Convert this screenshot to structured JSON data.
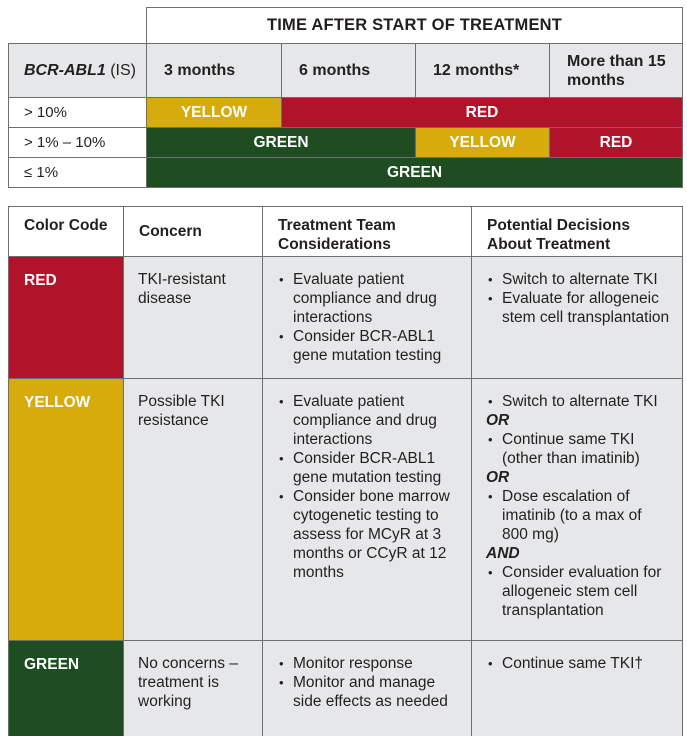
{
  "milestones": {
    "time_header": "TIME AFTER START OF TREATMENT",
    "row_header": "BCR-ABL1",
    "row_header_suffix": " (IS)",
    "columns": [
      "3 months",
      "6 months",
      "12 months*",
      "More than 15 months"
    ],
    "rows": [
      {
        "label": "> 10%",
        "cells": [
          {
            "text": "YELLOW"
          },
          {
            "text": "RED"
          }
        ]
      },
      {
        "label": "> 1% – 10%",
        "cells": [
          {
            "text": "GREEN"
          },
          {
            "text": "YELLOW"
          },
          {
            "text": "RED"
          }
        ]
      },
      {
        "label": "≤ 1%",
        "cells": [
          {
            "text": "GREEN"
          }
        ]
      }
    ]
  },
  "legend": {
    "headers": {
      "color_code": "Color Code",
      "concern": "Concern",
      "considerations": "Treatment Team Considerations",
      "decisions": "Potential Decisions About Treatment"
    },
    "rows": [
      {
        "code": "RED",
        "concern": "TKI-resistant disease",
        "considerations": [
          "Evaluate patient compliance and drug interactions",
          "Consider BCR-ABL1 gene mutation testing"
        ],
        "decisions": [
          "Switch to alternate TKI",
          "Evaluate for allogeneic stem cell transplantation"
        ]
      },
      {
        "code": "YELLOW",
        "concern": "Possible TKI resistance",
        "considerations": [
          "Evaluate patient compliance and drug interactions",
          "Consider BCR-ABL1 gene mutation testing",
          "Consider bone marrow cytogenetic testing to assess for MCyR at 3 months or CCyR at 12 months"
        ],
        "decisions": [
          "Switch to alternate TKI",
          "OR",
          "Continue same TKI (other than imatinib)",
          "OR",
          "Dose escalation of imatinib (to a max of 800 mg)",
          "AND",
          "Consider evaluation for allogeneic stem cell transplantation"
        ]
      },
      {
        "code": "GREEN",
        "concern": "No concerns – treatment is working",
        "considerations": [
          "Monitor response",
          "Monitor and manage side effects as needed"
        ],
        "decisions": [
          "Continue same TKI†"
        ]
      }
    ]
  },
  "colors": {
    "red": "#b1142a",
    "yellow": "#d7ab0b",
    "green": "#1e4d21",
    "gray": "#e6e7e8"
  }
}
